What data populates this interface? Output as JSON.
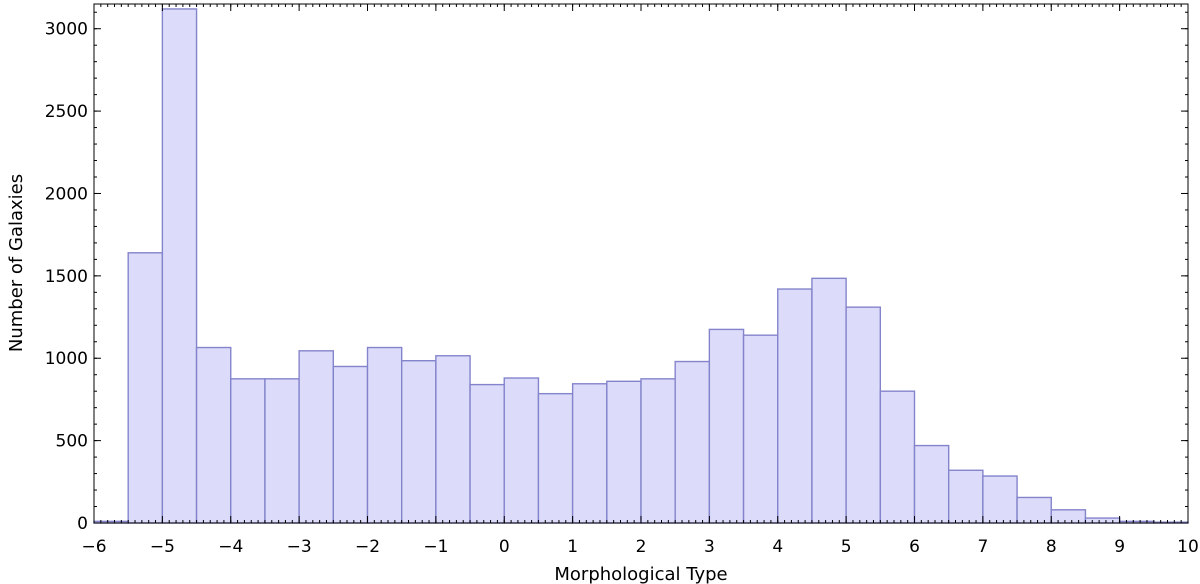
{
  "chart_data": {
    "type": "bar",
    "title": "",
    "xlabel": "Morphological Type",
    "ylabel": "Number of Galaxies",
    "xlim": [
      -6,
      10
    ],
    "ylim": [
      0,
      3150
    ],
    "xticks": [
      "−6",
      "−5",
      "−4",
      "−3",
      "−2",
      "−1",
      "0",
      "1",
      "2",
      "3",
      "4",
      "5",
      "6",
      "7",
      "8",
      "9",
      "10"
    ],
    "yticks": [
      "0",
      "500",
      "1000",
      "1500",
      "2000",
      "2500",
      "3000"
    ],
    "grid": false,
    "legend": false,
    "bin_width": 0.5,
    "bins": [
      {
        "start": -6.0,
        "end": -5.5,
        "value": 10
      },
      {
        "start": -5.5,
        "end": -5.0,
        "value": 1640
      },
      {
        "start": -5.0,
        "end": -4.5,
        "value": 3120
      },
      {
        "start": -4.5,
        "end": -4.0,
        "value": 1065
      },
      {
        "start": -4.0,
        "end": -3.5,
        "value": 875
      },
      {
        "start": -3.5,
        "end": -3.0,
        "value": 875
      },
      {
        "start": -3.0,
        "end": -2.5,
        "value": 1045
      },
      {
        "start": -2.5,
        "end": -2.0,
        "value": 950
      },
      {
        "start": -2.0,
        "end": -1.5,
        "value": 1065
      },
      {
        "start": -1.5,
        "end": -1.0,
        "value": 985
      },
      {
        "start": -1.0,
        "end": -0.5,
        "value": 1015
      },
      {
        "start": -0.5,
        "end": 0.0,
        "value": 840
      },
      {
        "start": 0.0,
        "end": 0.5,
        "value": 880
      },
      {
        "start": 0.5,
        "end": 1.0,
        "value": 785
      },
      {
        "start": 1.0,
        "end": 1.5,
        "value": 845
      },
      {
        "start": 1.5,
        "end": 2.0,
        "value": 860
      },
      {
        "start": 2.0,
        "end": 2.5,
        "value": 875
      },
      {
        "start": 2.5,
        "end": 3.0,
        "value": 980
      },
      {
        "start": 3.0,
        "end": 3.5,
        "value": 1175
      },
      {
        "start": 3.5,
        "end": 4.0,
        "value": 1140
      },
      {
        "start": 4.0,
        "end": 4.5,
        "value": 1420
      },
      {
        "start": 4.5,
        "end": 5.0,
        "value": 1485
      },
      {
        "start": 5.0,
        "end": 5.5,
        "value": 1310
      },
      {
        "start": 5.5,
        "end": 6.0,
        "value": 800
      },
      {
        "start": 6.0,
        "end": 6.5,
        "value": 470
      },
      {
        "start": 6.5,
        "end": 7.0,
        "value": 320
      },
      {
        "start": 7.0,
        "end": 7.5,
        "value": 285
      },
      {
        "start": 7.5,
        "end": 8.0,
        "value": 155
      },
      {
        "start": 8.0,
        "end": 8.5,
        "value": 80
      },
      {
        "start": 8.5,
        "end": 9.0,
        "value": 30
      },
      {
        "start": 9.0,
        "end": 9.5,
        "value": 10
      },
      {
        "start": 9.5,
        "end": 10.0,
        "value": 5
      }
    ],
    "colors": {
      "bar_fill": "#dcdcfa",
      "bar_stroke": "#8484cc",
      "axis": "#000000"
    }
  }
}
